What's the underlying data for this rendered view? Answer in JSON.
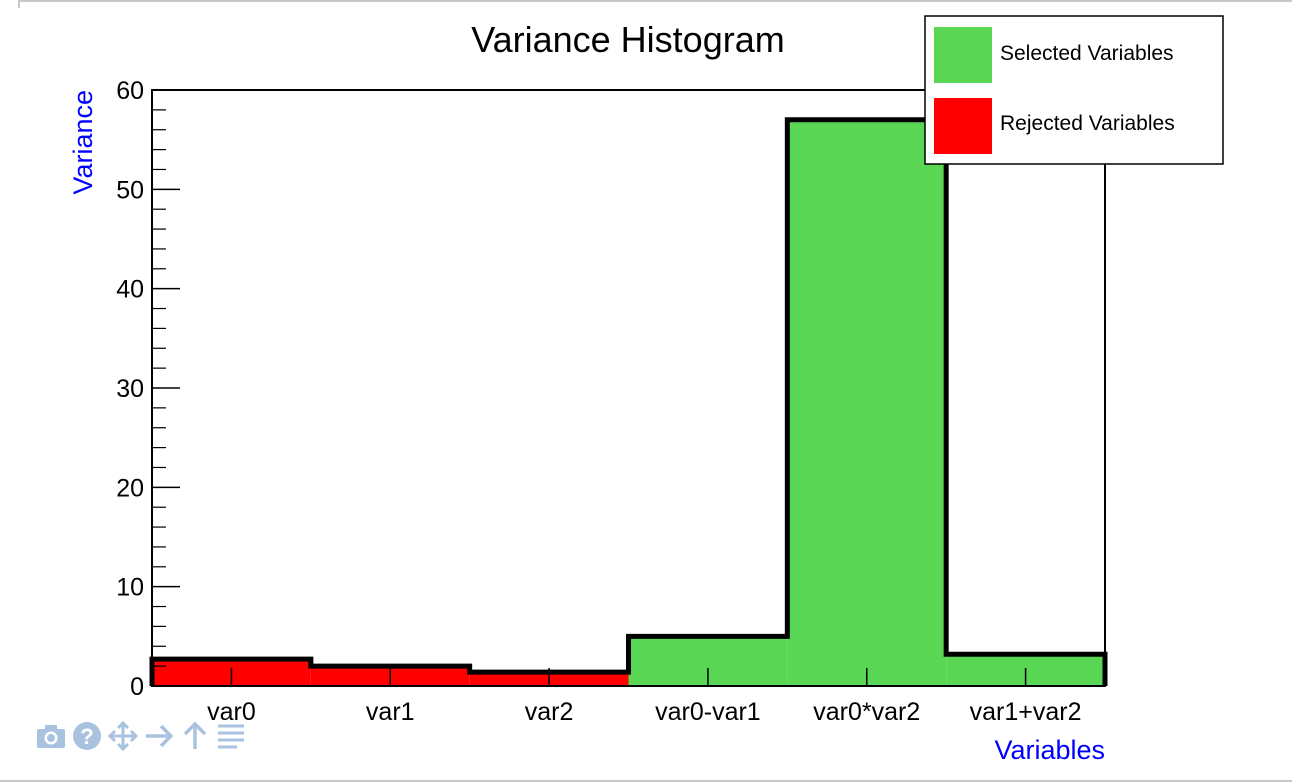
{
  "chart_data": {
    "type": "bar",
    "title": "Variance Histogram",
    "xlabel": "Variables",
    "ylabel": "Variance",
    "ylim": [
      0,
      60
    ],
    "yticks": [
      0,
      10,
      20,
      30,
      40,
      50,
      60
    ],
    "categories": [
      "var0",
      "var1",
      "var2",
      "var0-var1",
      "var0*var2",
      "var1+var2"
    ],
    "values": [
      2.7,
      2.0,
      1.4,
      5.0,
      57.0,
      3.2
    ],
    "status": [
      "Rejected Variables",
      "Rejected Variables",
      "Rejected Variables",
      "Selected Variables",
      "Selected Variables",
      "Selected Variables"
    ],
    "legend": [
      {
        "name": "Selected Variables",
        "color": "#5ad655"
      },
      {
        "name": "Rejected Variables",
        "color": "#ff0000"
      }
    ],
    "legend_position": "top-right",
    "grid": false
  },
  "colors": {
    "selected": "#5ad655",
    "rejected": "#ff0000",
    "axis_label": "#0000ff",
    "toolbar_icon": "#a9c2e0"
  },
  "toolbar": {
    "icons": [
      "camera-icon",
      "help-icon",
      "move-icon",
      "arrow-right-icon",
      "arrow-up-icon",
      "menu-lines-icon"
    ]
  }
}
